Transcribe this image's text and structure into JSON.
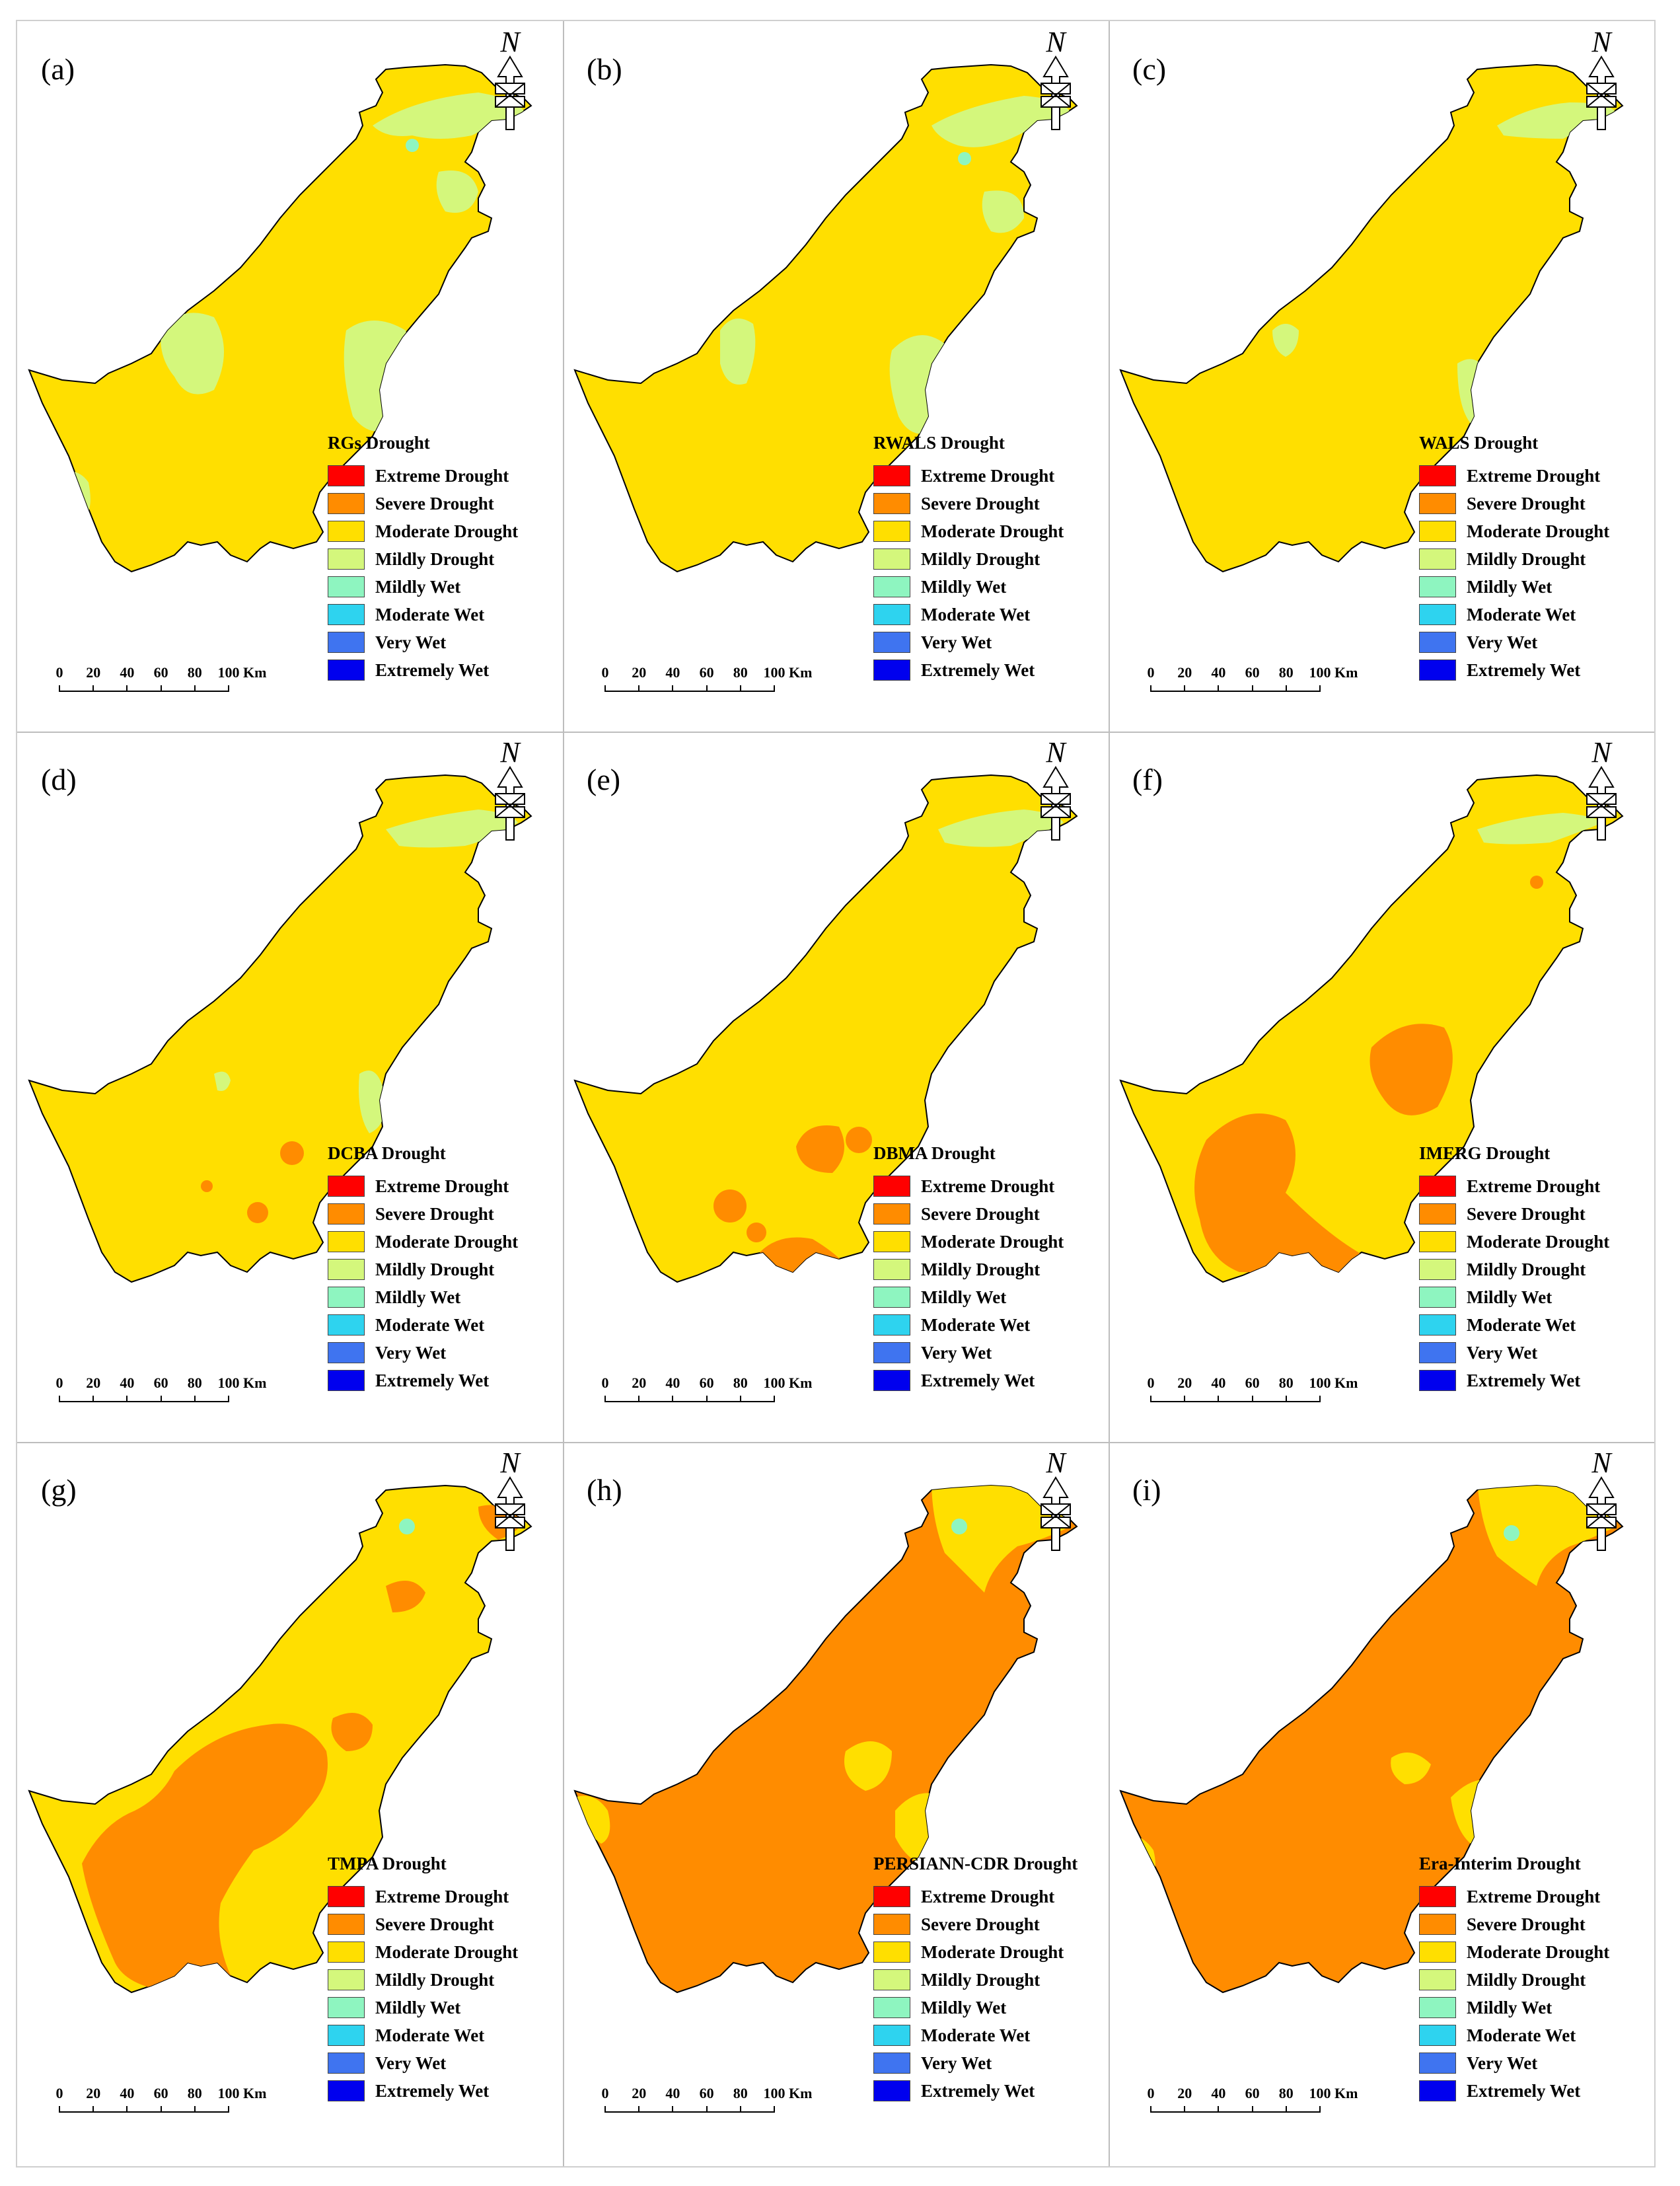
{
  "figure": {
    "scale_bar": {
      "ticks": [
        "0",
        "20",
        "40",
        "60",
        "80",
        "100"
      ],
      "unit": "Km"
    },
    "north_label": "N",
    "legend_classes": [
      {
        "label": "Extreme Drought",
        "color": "#ff0000"
      },
      {
        "label": "Severe Drought",
        "color": "#ff8c00"
      },
      {
        "label": "Moderate Drought",
        "color": "#ffdf00"
      },
      {
        "label": "Mildly Drought",
        "color": "#d4f77c"
      },
      {
        "label": "Mildly Wet",
        "color": "#8ef5c0"
      },
      {
        "label": "Moderate Wet",
        "color": "#2ed3ef"
      },
      {
        "label": "Very Wet",
        "color": "#3f74f0"
      },
      {
        "label": "Extremely Wet",
        "color": "#0000ee"
      }
    ],
    "panels": [
      {
        "id": "a",
        "label": "(a)",
        "legend_title": "RGs Drought",
        "base_class": "Moderate Drought"
      },
      {
        "id": "b",
        "label": "(b)",
        "legend_title": "RWALS Drought",
        "base_class": "Moderate Drought"
      },
      {
        "id": "c",
        "label": "(c)",
        "legend_title": "WALS Drought",
        "base_class": "Moderate Drought"
      },
      {
        "id": "d",
        "label": "(d)",
        "legend_title": "DCBA Drought",
        "base_class": "Moderate Drought"
      },
      {
        "id": "e",
        "label": "(e)",
        "legend_title": "DBMA Drought",
        "base_class": "Moderate Drought"
      },
      {
        "id": "f",
        "label": "(f)",
        "legend_title": "IMERG Drought",
        "base_class": "Moderate Drought"
      },
      {
        "id": "g",
        "label": "(g)",
        "legend_title": "TMPA Drought",
        "base_class": "Moderate Drought"
      },
      {
        "id": "h",
        "label": "(h)",
        "legend_title": "PERSIANN-CDR Drought",
        "base_class": "Severe Drought"
      },
      {
        "id": "i",
        "label": "(i)",
        "legend_title": "Era-Interim Drought",
        "base_class": "Severe Drought"
      }
    ]
  }
}
